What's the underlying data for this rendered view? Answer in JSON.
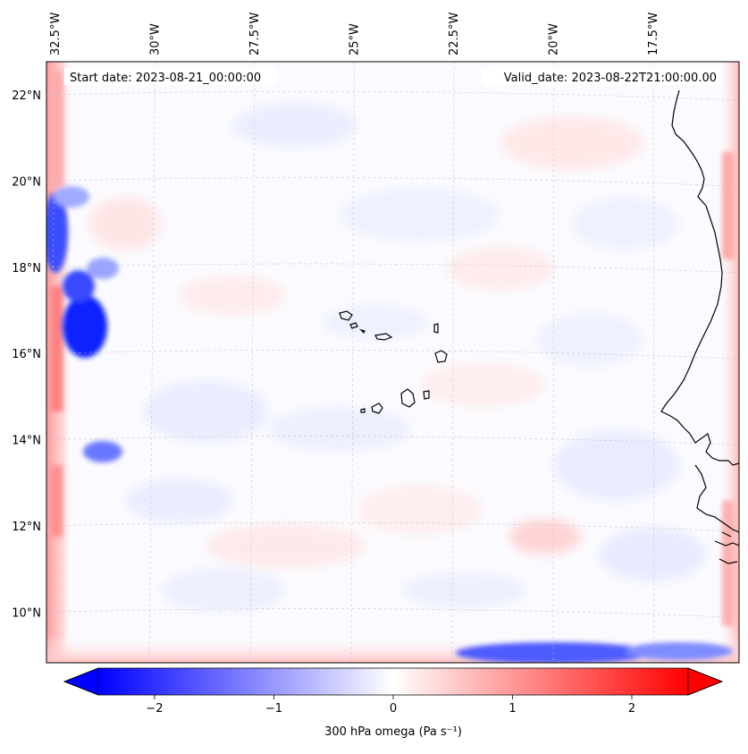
{
  "header": {
    "start_date": "Start date: 2023-08-21_00:00:00",
    "valid_date": "Valid_date: 2023-08-22T21:00:00.00"
  },
  "map": {
    "lon_labels": [
      {
        "lon": -32.5,
        "text": "32.5°W"
      },
      {
        "lon": -30.0,
        "text": "30°W"
      },
      {
        "lon": -27.5,
        "text": "27.5°W"
      },
      {
        "lon": -25.0,
        "text": "25°W"
      },
      {
        "lon": -22.5,
        "text": "22.5°W"
      },
      {
        "lon": -20.0,
        "text": "20°W"
      },
      {
        "lon": -17.5,
        "text": "17.5°W"
      }
    ],
    "lat_labels": [
      {
        "lat": 22,
        "text": "22°N"
      },
      {
        "lat": 20,
        "text": "20°N"
      },
      {
        "lat": 18,
        "text": "18°N"
      },
      {
        "lat": 16,
        "text": "16°N"
      },
      {
        "lat": 14,
        "text": "14°N"
      },
      {
        "lat": 12,
        "text": "12°N"
      },
      {
        "lat": 10,
        "text": "10°N"
      }
    ],
    "gridlines": true,
    "coastline_color": "#000000"
  },
  "colorbar": {
    "label": "300 hPa omega (Pa s⁻¹)",
    "colormap": "bwr",
    "min_color": "#0000ff",
    "mid_color": "#ffffff",
    "max_color": "#ff0000",
    "range": [
      -2.75,
      2.75
    ],
    "ticks": [
      {
        "value": -2,
        "text": "−2"
      },
      {
        "value": -1,
        "text": "−1"
      },
      {
        "value": 0,
        "text": "0"
      },
      {
        "value": 1,
        "text": "1"
      },
      {
        "value": 2,
        "text": "2"
      }
    ],
    "extend": "both"
  }
}
